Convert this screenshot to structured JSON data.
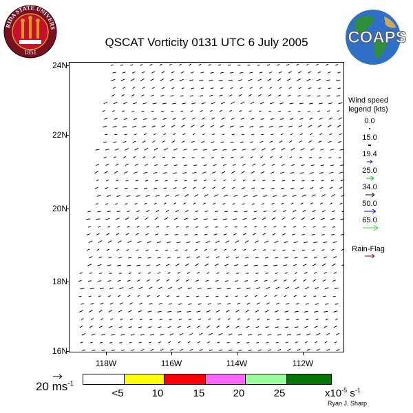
{
  "title": "QSCAT Vorticity 0131 UTC 6 July 2005",
  "logos": {
    "fsu_seal": {
      "top_text": "FLORIDA STATE UNIVERSITY",
      "year": "1851"
    },
    "coaps": {
      "text": "COAPS"
    }
  },
  "map": {
    "lat_labels": [
      "24N",
      "22N",
      "20N",
      "18N",
      "16N"
    ],
    "lon_labels": [
      "118W",
      "116W",
      "114W",
      "112W"
    ],
    "vector_color": "#000000"
  },
  "wind_legend": {
    "title_line1": "Wind speed",
    "title_line2": "legend (kts)",
    "entries": [
      {
        "value": "0.0",
        "color": "#000000"
      },
      {
        "value": "15.0",
        "color": "#000000"
      },
      {
        "value": "19.4",
        "color": "#0000ff"
      },
      {
        "value": "25.0",
        "color": "#00c000"
      },
      {
        "value": "34.0",
        "color": "#000000"
      },
      {
        "value": "50.0",
        "color": "#0000ff"
      },
      {
        "value": "65.0",
        "color": "#33dd33"
      }
    ],
    "rain_flag_label": "Rain-Flag",
    "rain_flag_color": "#8b0000"
  },
  "scale": {
    "label": "20 ms",
    "exponent": "-1"
  },
  "colorbar": {
    "colors": [
      "#ffffff",
      "#ffff00",
      "#ff0000",
      "#ff66ff",
      "#99ff99",
      "#007700"
    ],
    "labels": [
      "<5",
      "10",
      "15",
      "20",
      "25"
    ],
    "units_base": "x10",
    "units_exp1": "-5",
    "units_mid": " s",
    "units_exp2": "-1"
  },
  "credit": "Ryan J. Sharp"
}
